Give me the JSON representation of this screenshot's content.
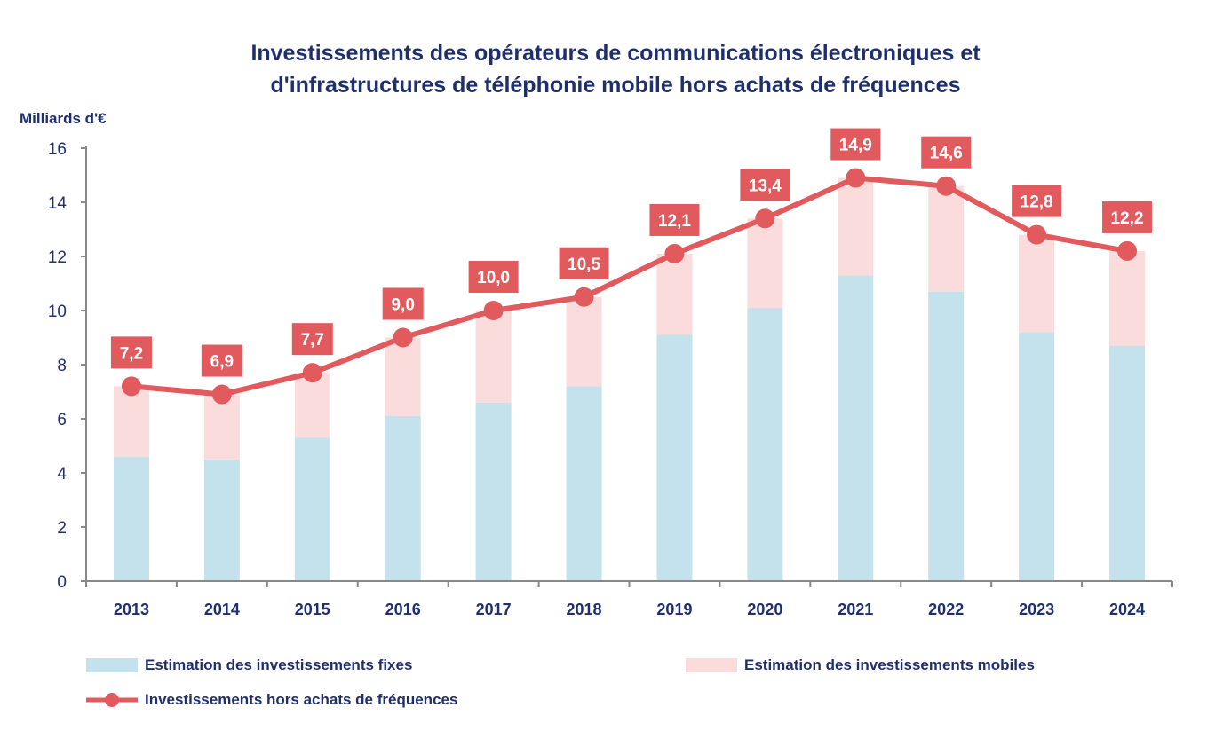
{
  "chart_data": {
    "type": "bar",
    "title_line1": "Investissements des opérateurs de communications électroniques et",
    "title_line2": "d'infrastructures de téléphonie mobile hors achats de fréquences",
    "ylabel": "Milliards d'€",
    "xlabel": "",
    "ylim": [
      0,
      16
    ],
    "yticks": [
      0,
      2,
      4,
      6,
      8,
      10,
      12,
      14,
      16
    ],
    "categories": [
      "2013",
      "2014",
      "2015",
      "2016",
      "2017",
      "2018",
      "2019",
      "2020",
      "2021",
      "2022",
      "2023",
      "2024"
    ],
    "series": [
      {
        "name": "Estimation des investissements fixes",
        "kind": "stacked-bar",
        "color": "#c3e2ec",
        "values": [
          4.6,
          4.5,
          5.3,
          6.1,
          6.6,
          7.2,
          9.1,
          10.1,
          11.3,
          10.7,
          9.2,
          8.7
        ]
      },
      {
        "name": "Estimation des investissements mobiles",
        "kind": "stacked-bar",
        "color": "#fadcdc",
        "values": [
          2.6,
          2.4,
          2.4,
          2.9,
          3.4,
          3.3,
          3.0,
          3.3,
          3.6,
          3.9,
          3.6,
          3.5
        ]
      },
      {
        "name": "Investissements hors achats de fréquences",
        "kind": "line",
        "color": "#e05a5e",
        "values": [
          7.2,
          6.9,
          7.7,
          9.0,
          10.0,
          10.5,
          12.1,
          13.4,
          14.9,
          14.6,
          12.8,
          12.2
        ],
        "labels": [
          "7,2",
          "6,9",
          "7,7",
          "9,0",
          "10,0",
          "10,5",
          "12,1",
          "13,4",
          "14,9",
          "14,6",
          "12,8",
          "12,2"
        ]
      }
    ],
    "grid": false,
    "legend_position": "bottom"
  }
}
